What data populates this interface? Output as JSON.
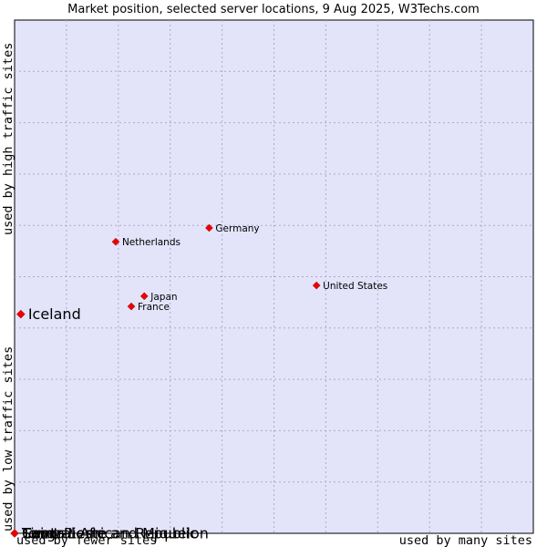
{
  "chart_data": {
    "type": "scatter",
    "title": "Market position, selected server locations, 9 Aug 2025, W3Techs.com",
    "xlabel_low": "used by fewer sites",
    "xlabel_high": "used by many sites",
    "ylabel_low": "used by low traffic sites",
    "ylabel_high": "used by high traffic sites",
    "xlim": [
      0,
      10
    ],
    "ylim": [
      0,
      10
    ],
    "grid": true,
    "points": [
      {
        "label": "Netherlands",
        "x": 1.95,
        "y": 5.68,
        "highlight": false
      },
      {
        "label": "Germany",
        "x": 3.75,
        "y": 5.95,
        "highlight": false
      },
      {
        "label": "United States",
        "x": 5.82,
        "y": 4.83,
        "highlight": false
      },
      {
        "label": "Japan",
        "x": 2.5,
        "y": 4.62,
        "highlight": false
      },
      {
        "label": "France",
        "x": 2.25,
        "y": 4.42,
        "highlight": false
      },
      {
        "label": "Iceland",
        "x": 0.12,
        "y": 4.27,
        "highlight": true
      },
      {
        "label": "Central African Republic",
        "x": 0.0,
        "y": 0.0,
        "highlight": true
      },
      {
        "label": "Saint Pierre and Miquelon",
        "x": 0.0,
        "y": 0.0,
        "highlight": true
      },
      {
        "label": "Tonga",
        "x": 0.0,
        "y": 0.0,
        "highlight": true
      },
      {
        "label": "Timor-Leste",
        "x": 0.0,
        "y": 0.0,
        "highlight": true
      }
    ]
  },
  "colors": {
    "plot_bg": "#e3e4fa",
    "grid": "#aaaacc",
    "marker": "#ee0000"
  }
}
